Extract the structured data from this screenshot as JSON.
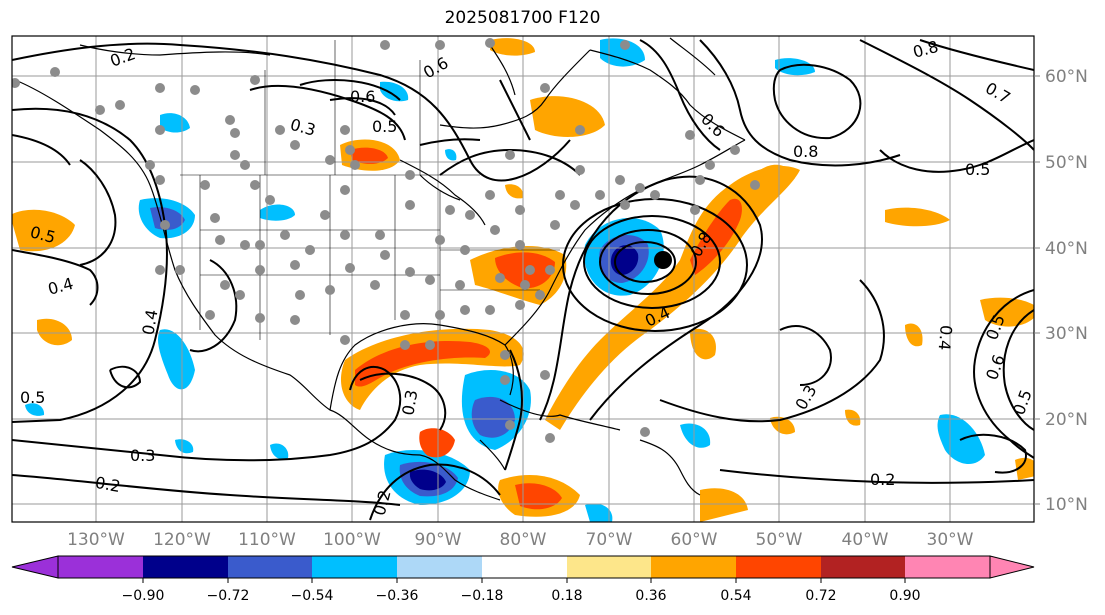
{
  "title": "2025081700 F120",
  "lat_labels": [
    "60°N",
    "50°N",
    "40°N",
    "30°N",
    "20°N",
    "10°N"
  ],
  "lon_labels": [
    "130°W",
    "120°W",
    "110°W",
    "100°W",
    "90°W",
    "80°W",
    "70°W",
    "60°W",
    "50°W",
    "40°W",
    "30°W"
  ],
  "colorbar": {
    "ticks": [
      "−0.90",
      "−0.72",
      "−0.54",
      "−0.36",
      "−0.18",
      "0.18",
      "0.36",
      "0.54",
      "0.72",
      "0.90"
    ],
    "colors": [
      "#9b30d9",
      "#00008b",
      "#3a5bcc",
      "#00bfff",
      "#add8f7",
      "#ffffff",
      "#fde68a",
      "#ffa500",
      "#ff4500",
      "#b22222",
      "#ff85b3"
    ]
  },
  "contour_labels": [
    "0.2",
    "0.6",
    "0.6",
    "0.3",
    "0.5",
    "0.6",
    "0.8",
    "0.8",
    "0.7",
    "0.5",
    "0.5",
    "0.4",
    "0.4",
    "0.5",
    "0.3",
    "0.2",
    "0.3",
    "0.2",
    "0.4",
    "0.8",
    "0.3",
    "0.2",
    "0.5",
    "0.6",
    "0.5",
    "0.4"
  ],
  "colors": {
    "grid": "#9a9a9a",
    "contour": "#000000",
    "dot": "#8c8c8c",
    "axis_text": "#808080"
  }
}
